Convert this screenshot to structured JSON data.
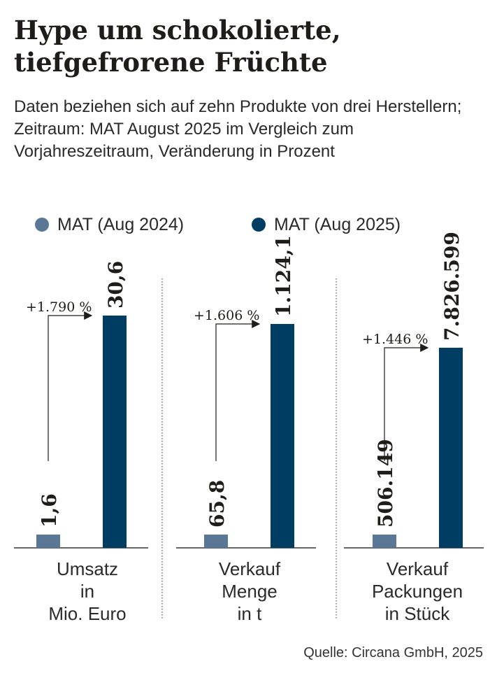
{
  "title": "Hype um schokolierte, tiefgefrorene Früchte",
  "subtitle": "Daten beziehen sich auf zehn Produkte von drei Herstellern; Zeitraum: MAT August 2025 im Vergleich zum Vorjahreszeitraum, Veränderung in Prozent",
  "source": "Quelle: Circana GmbH, 2025",
  "colors": {
    "series_2024": "#5a7896",
    "series_2025": "#003d62",
    "text": "#1f1d1a",
    "axis": "#333333"
  },
  "chart_data": {
    "type": "bar",
    "layout_note": "three small-multiple panels, each with independent scale",
    "legend": [
      "MAT (Aug 2024)",
      "MAT (Aug 2025)"
    ],
    "panels": [
      {
        "category": "Umsatz\nin\nMio. Euro",
        "values": [
          1.6,
          30.6
        ],
        "value_labels": [
          "1,6",
          "30,6"
        ],
        "change_label": "+1.790 %"
      },
      {
        "category": "Verkauf\nMenge\nin t",
        "values": [
          65.8,
          1124.1
        ],
        "value_labels": [
          "65,8",
          "1.124,1"
        ],
        "change_label": "+1.606 %"
      },
      {
        "category": "Verkauf\nPackungen\nin Stück",
        "values": [
          506149,
          7826599
        ],
        "value_labels": [
          "506.149",
          "7.826.599"
        ],
        "change_label": "+1.446 %"
      }
    ]
  }
}
